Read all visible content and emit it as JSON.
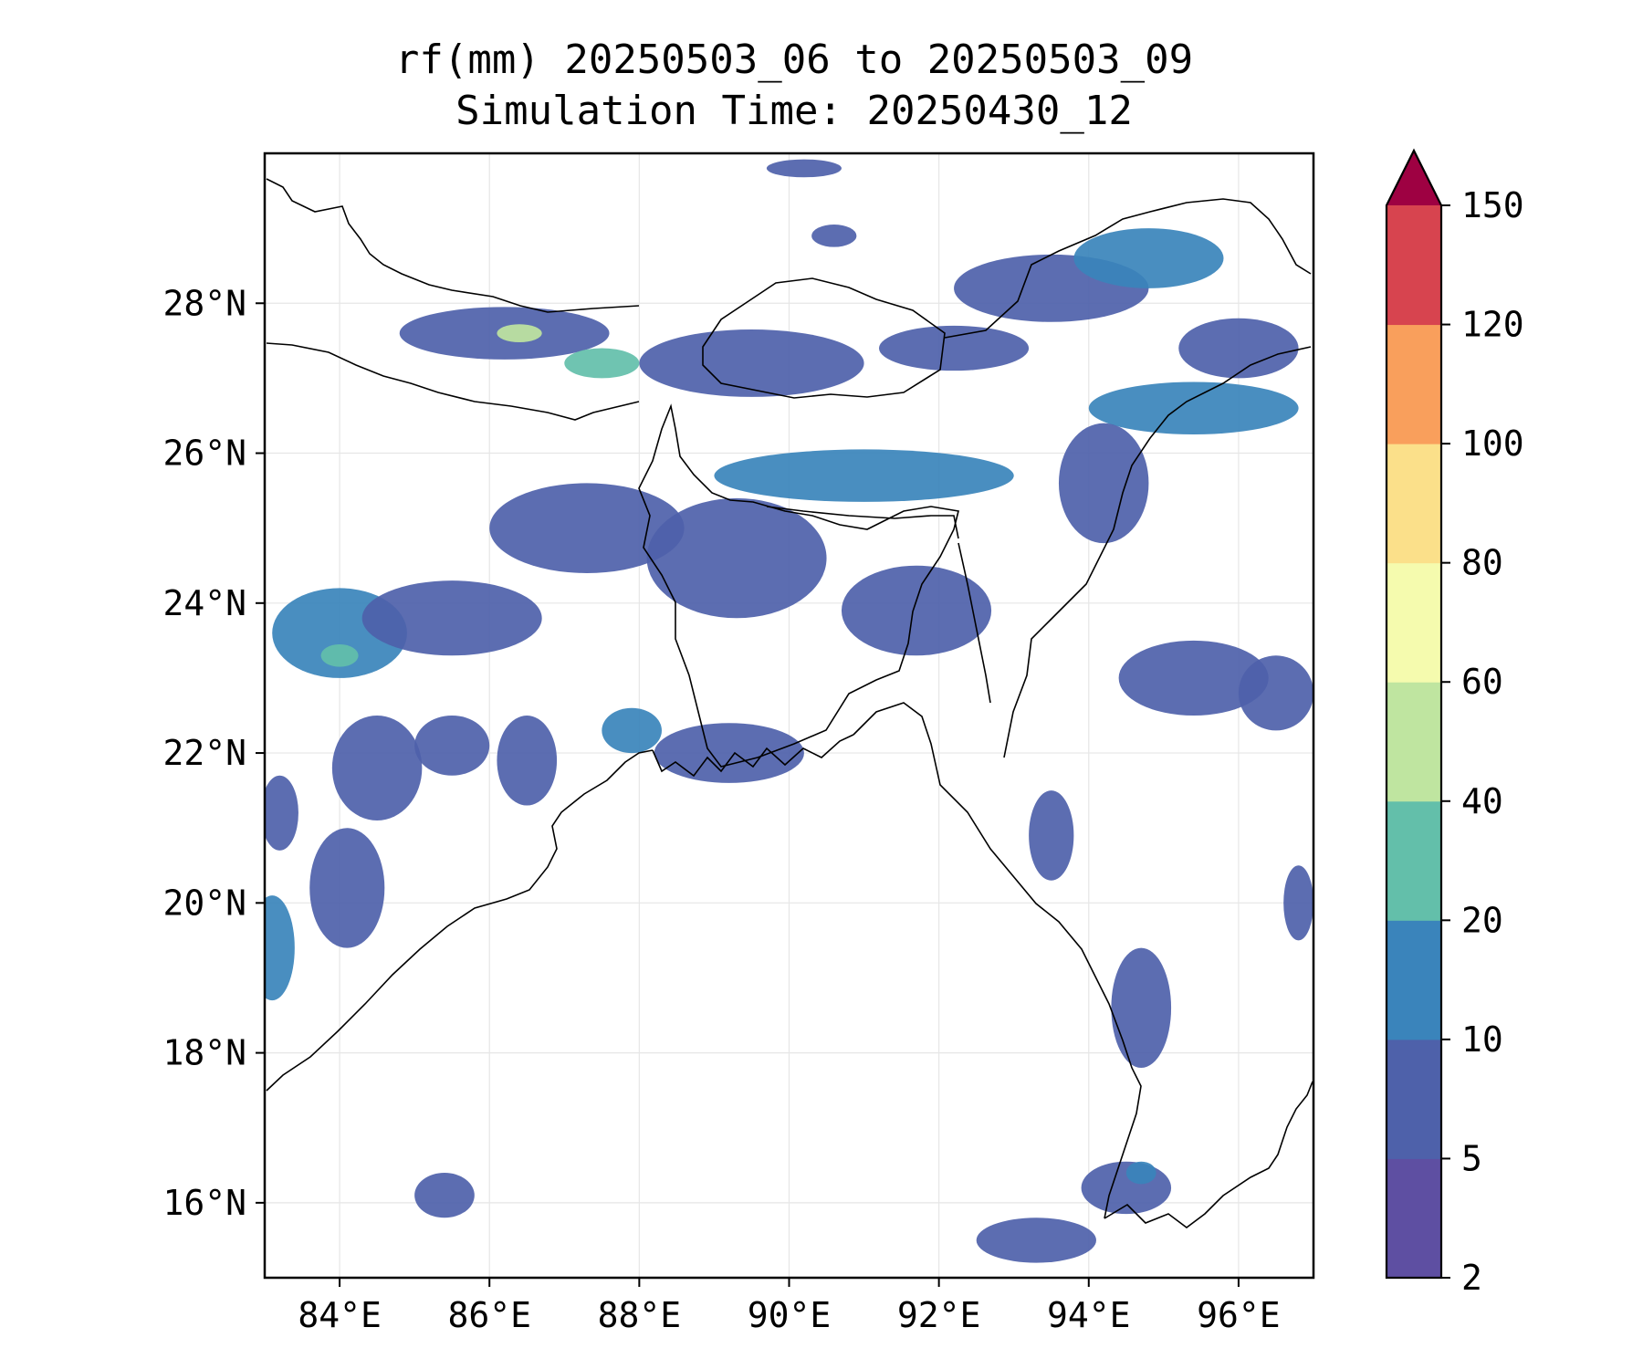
{
  "title": {
    "line1": "rf(mm) 20250503_06 to 20250503_09",
    "line2": "Simulation Time: 20250430_12"
  },
  "map": {
    "lon_range": [
      83.0,
      97.0
    ],
    "lat_range": [
      15.0,
      30.0
    ],
    "lon_ticks": [
      {
        "value": 84,
        "label": "84°E"
      },
      {
        "value": 86,
        "label": "86°E"
      },
      {
        "value": 88,
        "label": "88°E"
      },
      {
        "value": 90,
        "label": "90°E"
      },
      {
        "value": 92,
        "label": "92°E"
      },
      {
        "value": 94,
        "label": "94°E"
      },
      {
        "value": 96,
        "label": "96°E"
      }
    ],
    "lat_ticks": [
      {
        "value": 16,
        "label": "16°N"
      },
      {
        "value": 18,
        "label": "18°N"
      },
      {
        "value": 20,
        "label": "20°N"
      },
      {
        "value": 22,
        "label": "22°N"
      },
      {
        "value": 24,
        "label": "24°N"
      },
      {
        "value": 26,
        "label": "26°N"
      },
      {
        "value": 28,
        "label": "28°N"
      }
    ],
    "grid": true,
    "coastline_color": "#000000",
    "rain_blobs": [
      {
        "lon": 86.2,
        "lat": 27.6,
        "rx": 1.4,
        "ry": 0.35,
        "level": 1
      },
      {
        "lon": 86.4,
        "lat": 27.6,
        "rx": 0.3,
        "ry": 0.12,
        "level": 4
      },
      {
        "lon": 87.5,
        "lat": 27.2,
        "rx": 0.5,
        "ry": 0.2,
        "level": 3
      },
      {
        "lon": 89.5,
        "lat": 27.2,
        "rx": 1.5,
        "ry": 0.45,
        "level": 1
      },
      {
        "lon": 92.2,
        "lat": 27.4,
        "rx": 1.0,
        "ry": 0.3,
        "level": 1
      },
      {
        "lon": 93.5,
        "lat": 28.2,
        "rx": 1.3,
        "ry": 0.45,
        "level": 1
      },
      {
        "lon": 94.8,
        "lat": 28.6,
        "rx": 1.0,
        "ry": 0.4,
        "level": 2
      },
      {
        "lon": 96.0,
        "lat": 27.4,
        "rx": 0.8,
        "ry": 0.4,
        "level": 1
      },
      {
        "lon": 95.4,
        "lat": 26.6,
        "rx": 1.4,
        "ry": 0.35,
        "level": 2
      },
      {
        "lon": 94.2,
        "lat": 25.6,
        "rx": 0.6,
        "ry": 0.8,
        "level": 1
      },
      {
        "lon": 91.0,
        "lat": 25.7,
        "rx": 2.0,
        "ry": 0.35,
        "level": 2
      },
      {
        "lon": 87.3,
        "lat": 25.0,
        "rx": 1.3,
        "ry": 0.6,
        "level": 1
      },
      {
        "lon": 89.3,
        "lat": 24.6,
        "rx": 1.2,
        "ry": 0.8,
        "level": 1
      },
      {
        "lon": 91.7,
        "lat": 23.9,
        "rx": 1.0,
        "ry": 0.6,
        "level": 1
      },
      {
        "lon": 84.0,
        "lat": 23.6,
        "rx": 0.9,
        "ry": 0.6,
        "level": 2
      },
      {
        "lon": 84.0,
        "lat": 23.3,
        "rx": 0.25,
        "ry": 0.15,
        "level": 3
      },
      {
        "lon": 85.5,
        "lat": 23.8,
        "rx": 1.2,
        "ry": 0.5,
        "level": 1
      },
      {
        "lon": 95.4,
        "lat": 23.0,
        "rx": 1.0,
        "ry": 0.5,
        "level": 1
      },
      {
        "lon": 96.5,
        "lat": 22.8,
        "rx": 0.5,
        "ry": 0.5,
        "level": 1
      },
      {
        "lon": 84.5,
        "lat": 21.8,
        "rx": 0.6,
        "ry": 0.7,
        "level": 1
      },
      {
        "lon": 85.5,
        "lat": 22.1,
        "rx": 0.5,
        "ry": 0.4,
        "level": 1
      },
      {
        "lon": 86.5,
        "lat": 21.9,
        "rx": 0.4,
        "ry": 0.6,
        "level": 1
      },
      {
        "lon": 87.9,
        "lat": 22.3,
        "rx": 0.4,
        "ry": 0.3,
        "level": 2
      },
      {
        "lon": 89.2,
        "lat": 22.0,
        "rx": 1.0,
        "ry": 0.4,
        "level": 1
      },
      {
        "lon": 83.2,
        "lat": 21.2,
        "rx": 0.25,
        "ry": 0.5,
        "level": 1
      },
      {
        "lon": 84.1,
        "lat": 20.2,
        "rx": 0.5,
        "ry": 0.8,
        "level": 1
      },
      {
        "lon": 83.1,
        "lat": 19.4,
        "rx": 0.3,
        "ry": 0.7,
        "level": 2
      },
      {
        "lon": 93.5,
        "lat": 20.9,
        "rx": 0.3,
        "ry": 0.6,
        "level": 1
      },
      {
        "lon": 94.7,
        "lat": 18.6,
        "rx": 0.4,
        "ry": 0.8,
        "level": 1
      },
      {
        "lon": 96.8,
        "lat": 20.0,
        "rx": 0.2,
        "ry": 0.5,
        "level": 1
      },
      {
        "lon": 94.5,
        "lat": 16.2,
        "rx": 0.6,
        "ry": 0.35,
        "level": 1
      },
      {
        "lon": 94.7,
        "lat": 16.4,
        "rx": 0.2,
        "ry": 0.15,
        "level": 2
      },
      {
        "lon": 85.4,
        "lat": 16.1,
        "rx": 0.4,
        "ry": 0.3,
        "level": 1
      },
      {
        "lon": 93.3,
        "lat": 15.5,
        "rx": 0.8,
        "ry": 0.3,
        "level": 1
      },
      {
        "lon": 90.2,
        "lat": 29.8,
        "rx": 0.5,
        "ry": 0.12,
        "level": 1
      },
      {
        "lon": 90.6,
        "lat": 28.9,
        "rx": 0.3,
        "ry": 0.15,
        "level": 1
      }
    ]
  },
  "colorbar": {
    "levels": [
      "2",
      "5",
      "10",
      "20",
      "40",
      "60",
      "80",
      "100",
      "120",
      "150"
    ],
    "colors": [
      "#5e4fa2",
      "#4e61aa",
      "#3a84bb",
      "#63bfaa",
      "#bfe5a0",
      "#f5fbae",
      "#fbe08a",
      "#f99f5c",
      "#d7444f"
    ],
    "extend_color": "#9e0142",
    "extend": "max"
  }
}
